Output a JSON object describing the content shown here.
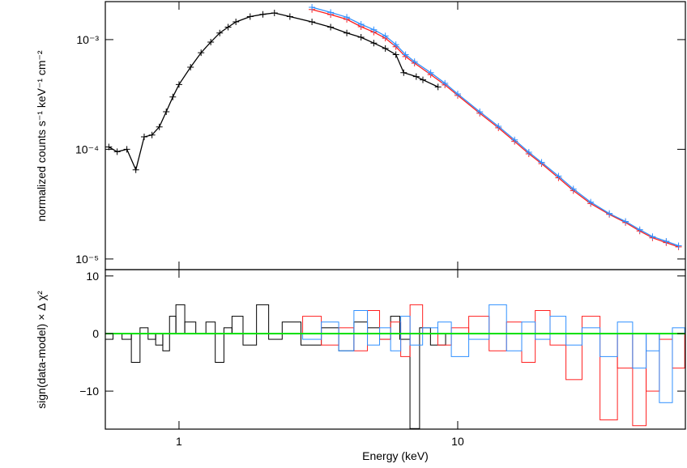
{
  "chart_data": [
    {
      "type": "line",
      "xlog": true,
      "ylog": true,
      "markers": "cross",
      "ylabel": "normalized counts s⁻¹ keV⁻¹ cm⁻²",
      "xlim": [
        0.544,
        65.6
      ],
      "ylim": [
        8e-06,
        0.00222
      ],
      "xticks": [
        1,
        10
      ],
      "yticks": [
        {
          "value": 0.001,
          "label": "10⁻³"
        },
        {
          "value": 0.0001,
          "label": "10⁻⁴"
        },
        {
          "value": 1e-05,
          "label": "10⁻⁵"
        }
      ],
      "series": [
        {
          "color": "#000000",
          "x": [
            0.56,
            0.6,
            0.65,
            0.7,
            0.75,
            0.8,
            0.85,
            0.9,
            0.95,
            1.0,
            1.1,
            1.2,
            1.3,
            1.4,
            1.5,
            1.6,
            1.8,
            2.0,
            2.2,
            2.5,
            3.0,
            3.5,
            4.0,
            4.5,
            5.0,
            5.5,
            6.0,
            6.4,
            7.1,
            7.5,
            8.5
          ],
          "values": [
            0.000105,
            9.5e-05,
            0.0001,
            6.5e-05,
            0.00013,
            0.000135,
            0.00016,
            0.00022,
            0.0003,
            0.00039,
            0.00056,
            0.00076,
            0.00095,
            0.00115,
            0.0013,
            0.00145,
            0.00162,
            0.0017,
            0.00175,
            0.00162,
            0.00145,
            0.0013,
            0.00115,
            0.00105,
            0.00093,
            0.00083,
            0.00073,
            0.0005,
            0.00046,
            0.00043,
            0.00037
          ]
        },
        {
          "color": "#ff2020",
          "x": [
            3,
            3.5,
            4,
            4.5,
            5,
            5.5,
            6,
            6.5,
            7,
            8,
            9,
            10,
            12,
            14,
            16,
            18,
            20,
            23,
            26,
            30,
            35,
            40,
            45,
            50,
            56,
            62
          ],
          "values": [
            0.00188,
            0.00169,
            0.00153,
            0.00131,
            0.00117,
            0.00103,
            0.00086,
            0.0007,
            0.00061,
            0.00048,
            0.000386,
            0.00031,
            0.000213,
            0.000157,
            0.000118,
            9.1e-05,
            7.4e-05,
            5.5e-05,
            4.2e-05,
            3.2e-05,
            2.55e-05,
            2.15e-05,
            1.8e-05,
            1.56e-05,
            1.41e-05,
            1.29e-05
          ]
        },
        {
          "color": "#3090ff",
          "x": [
            3,
            3.5,
            4,
            4.5,
            5,
            5.5,
            6,
            6.5,
            7,
            8,
            9,
            10,
            12,
            14,
            16,
            18,
            20,
            23,
            26,
            30,
            35,
            40,
            45,
            50,
            56,
            62
          ],
          "values": [
            0.00197,
            0.00177,
            0.0016,
            0.00138,
            0.00123,
            0.00108,
            0.0009,
            0.00073,
            0.00063,
            0.0005,
            0.0004,
            0.00032,
            0.00022,
            0.000162,
            0.000122,
            9.4e-05,
            7.6e-05,
            5.7e-05,
            4.35e-05,
            3.3e-05,
            2.6e-05,
            2.2e-05,
            1.85e-05,
            1.6e-05,
            1.45e-05,
            1.32e-05
          ]
        }
      ]
    },
    {
      "type": "bar",
      "xlog": true,
      "ylabel": "sign(data-model) × Δ χ²",
      "xlabel": "Energy (keV)",
      "xlim": [
        0.544,
        65.6
      ],
      "ylim": [
        -16.6,
        11.1
      ],
      "xticks": [
        1,
        10
      ],
      "yticks": [
        10,
        0,
        {
          "value": -10,
          "label": "−10"
        }
      ],
      "zero_line_color": "#00e000",
      "series": [
        {
          "color": "#000000",
          "x": [
            0.56,
            0.6,
            0.65,
            0.7,
            0.75,
            0.8,
            0.85,
            0.9,
            0.95,
            1.0,
            1.1,
            1.2,
            1.3,
            1.4,
            1.5,
            1.6,
            1.8,
            2.0,
            2.2,
            2.5,
            3.0,
            3.5,
            4.0,
            4.5,
            5.0,
            5.5,
            6.0,
            6.4,
            7.1,
            7.5,
            8.5
          ],
          "values": [
            -1,
            0,
            -1,
            -5,
            1,
            -1,
            -2,
            -3,
            3,
            5,
            2,
            0,
            2,
            -5,
            1,
            3,
            -2,
            5,
            -1,
            2,
            -2,
            1,
            -3,
            2,
            1,
            -1,
            3,
            -1,
            -16.5,
            1,
            -2
          ]
        },
        {
          "color": "#ff2020",
          "x": [
            3,
            3.5,
            4,
            4.5,
            5,
            5.5,
            6,
            6.5,
            7,
            8,
            9,
            10,
            12,
            14,
            16,
            18,
            20,
            23,
            26,
            30,
            35,
            40,
            45,
            50,
            56,
            62
          ],
          "values": [
            3,
            -2,
            1,
            -3,
            4,
            -1,
            2,
            -4,
            5,
            0,
            -2,
            1,
            3,
            -3,
            2,
            -5,
            4,
            -2,
            -8,
            3,
            -15,
            -6,
            -16,
            -10,
            -1,
            -6
          ]
        },
        {
          "color": "#3090ff",
          "x": [
            3,
            3.5,
            4,
            4.5,
            5,
            5.5,
            6,
            6.5,
            7,
            8,
            9,
            10,
            12,
            14,
            16,
            18,
            20,
            23,
            26,
            30,
            35,
            40,
            45,
            50,
            56,
            62
          ],
          "values": [
            -1,
            2,
            -3,
            4,
            -2,
            1,
            -3,
            3,
            -2,
            1,
            2,
            -4,
            -1,
            5,
            -3,
            2,
            -1,
            3,
            -2,
            1,
            -4,
            2,
            -6,
            -3,
            -12,
            1
          ]
        }
      ]
    }
  ]
}
